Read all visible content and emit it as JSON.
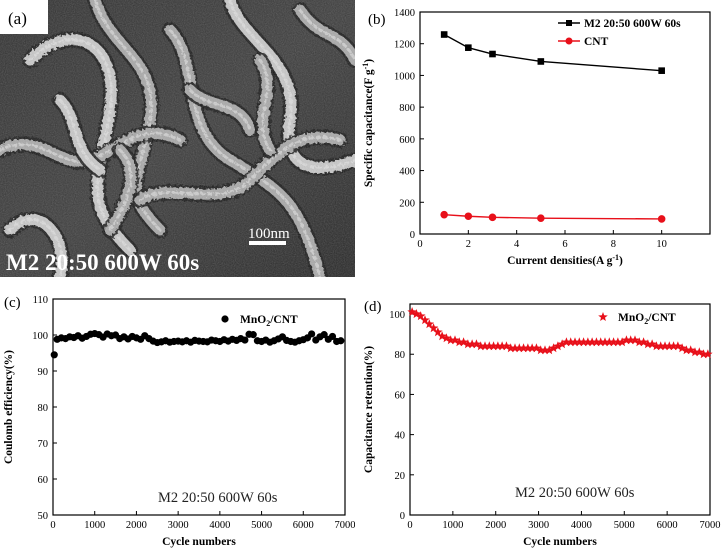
{
  "panels": {
    "a": {
      "label": "(a)",
      "scale_bar": "100nm",
      "caption": "M2 20:50 600W 60s"
    }
  },
  "chart_data": [
    {
      "panel": "(b)",
      "type": "line",
      "xlabel": "Current densities(A g",
      "xlabel_sup": "-1",
      "xlabel_end": ")",
      "ylabel": "Specific capacitance(F g",
      "ylabel_sup": "-1",
      "ylabel_end": ")",
      "xlim": [
        0,
        12
      ],
      "ylim": [
        0,
        1400
      ],
      "xticks": [
        0,
        2,
        4,
        6,
        8,
        10
      ],
      "yticks": [
        0,
        200,
        400,
        600,
        800,
        1000,
        1200,
        1400
      ],
      "series": [
        {
          "name": "M2 20:50 600W 60s",
          "color": "#000000",
          "marker": "square",
          "x": [
            1,
            2,
            3,
            5,
            10
          ],
          "values": [
            1258,
            1175,
            1135,
            1088,
            1030
          ]
        },
        {
          "name": "CNT",
          "color": "#e8101a",
          "marker": "circle",
          "x": [
            1,
            2,
            3,
            5,
            10
          ],
          "values": [
            122,
            112,
            105,
            100,
            95
          ]
        }
      ],
      "legend": "top-right"
    },
    {
      "panel": "(c)",
      "type": "scatter",
      "xlabel": "Cycle numbers",
      "ylabel": "Coulomb efficiency(%)",
      "xlim": [
        0,
        7000
      ],
      "ylim": [
        50,
        110
      ],
      "xticks": [
        0,
        1000,
        2000,
        3000,
        4000,
        5000,
        6000,
        7000
      ],
      "yticks": [
        50,
        60,
        70,
        80,
        90,
        100,
        110
      ],
      "annotation": "M2 20:50 600W 60s",
      "series": [
        {
          "name": "MnO",
          "name_sub": "2",
          "name_end": "/CNT",
          "color": "#000000",
          "marker": "circle",
          "x": [
            30,
            100,
            200,
            300,
            400,
            500,
            600,
            700,
            800,
            900,
            1000,
            1100,
            1200,
            1300,
            1400,
            1500,
            1600,
            1700,
            1800,
            1900,
            2000,
            2100,
            2200,
            2300,
            2400,
            2500,
            2600,
            2700,
            2800,
            2900,
            3000,
            3100,
            3200,
            3300,
            3400,
            3500,
            3600,
            3700,
            3800,
            3900,
            4000,
            4100,
            4200,
            4300,
            4400,
            4500,
            4600,
            4700,
            4800,
            4900,
            5000,
            5100,
            5200,
            5300,
            5400,
            5500,
            5600,
            5700,
            5800,
            5900,
            6000,
            6100,
            6200,
            6300,
            6400,
            6500,
            6600,
            6700,
            6800,
            6900
          ],
          "values": [
            94.5,
            98.8,
            99.2,
            99.0,
            99.5,
            99.3,
            99.8,
            99.1,
            99.6,
            100.2,
            100.4,
            100.1,
            99.4,
            100.3,
            99.8,
            100.0,
            99.0,
            99.5,
            98.9,
            99.6,
            99.2,
            98.8,
            99.8,
            99.0,
            98.3,
            97.9,
            98.1,
            98.4,
            98.0,
            98.2,
            98.3,
            98.1,
            98.4,
            98.0,
            98.5,
            98.3,
            98.2,
            98.1,
            98.6,
            98.4,
            98.2,
            98.7,
            98.3,
            98.8,
            98.5,
            99.0,
            98.6,
            100.2,
            100.1,
            98.4,
            98.2,
            98.6,
            98.0,
            98.4,
            98.9,
            99.5,
            98.5,
            98.2,
            98.0,
            98.4,
            98.7,
            99.2,
            100.3,
            98.6,
            99.5,
            100.1,
            98.8,
            99.6,
            98.2,
            98.4
          ]
        }
      ],
      "legend": "top-right"
    },
    {
      "panel": "(d)",
      "type": "scatter",
      "xlabel": "Cycle numbers",
      "ylabel": "Capacitance retention(%)",
      "xlim": [
        0,
        7000
      ],
      "ylim": [
        0,
        105
      ],
      "xticks": [
        0,
        1000,
        2000,
        3000,
        4000,
        5000,
        6000,
        7000
      ],
      "yticks": [
        0,
        20,
        40,
        60,
        80,
        100
      ],
      "annotation": "M2 20:50 600W 60s",
      "series": [
        {
          "name": "MnO",
          "name_sub": "2",
          "name_end": "/CNT",
          "color": "#e8101a",
          "marker": "star",
          "x": [
            50,
            150,
            250,
            350,
            450,
            550,
            650,
            750,
            850,
            950,
            1050,
            1150,
            1250,
            1350,
            1450,
            1550,
            1650,
            1750,
            1850,
            1950,
            2050,
            2150,
            2250,
            2350,
            2450,
            2550,
            2650,
            2750,
            2850,
            2950,
            3050,
            3150,
            3250,
            3350,
            3450,
            3550,
            3650,
            3750,
            3850,
            3950,
            4050,
            4150,
            4250,
            4350,
            4450,
            4550,
            4650,
            4750,
            4850,
            4950,
            5050,
            5150,
            5250,
            5350,
            5450,
            5550,
            5650,
            5750,
            5850,
            5950,
            6050,
            6150,
            6250,
            6350,
            6450,
            6550,
            6650,
            6750,
            6850,
            6950
          ],
          "values": [
            101,
            100,
            99,
            97,
            95,
            93,
            91,
            89,
            88,
            87,
            87,
            86,
            86,
            85,
            85,
            85,
            84,
            84,
            84,
            84,
            84,
            84,
            84,
            83,
            83,
            83,
            83,
            83,
            83,
            83,
            82,
            82,
            82,
            83,
            84,
            85,
            86,
            86,
            86,
            86,
            86,
            86,
            86,
            86,
            86,
            86,
            86,
            86,
            86,
            86,
            87,
            87,
            87,
            86,
            86,
            85,
            85,
            84,
            84,
            84,
            84,
            84,
            84,
            83,
            82,
            82,
            81,
            81,
            80,
            80
          ]
        }
      ],
      "legend": "top-right"
    }
  ]
}
